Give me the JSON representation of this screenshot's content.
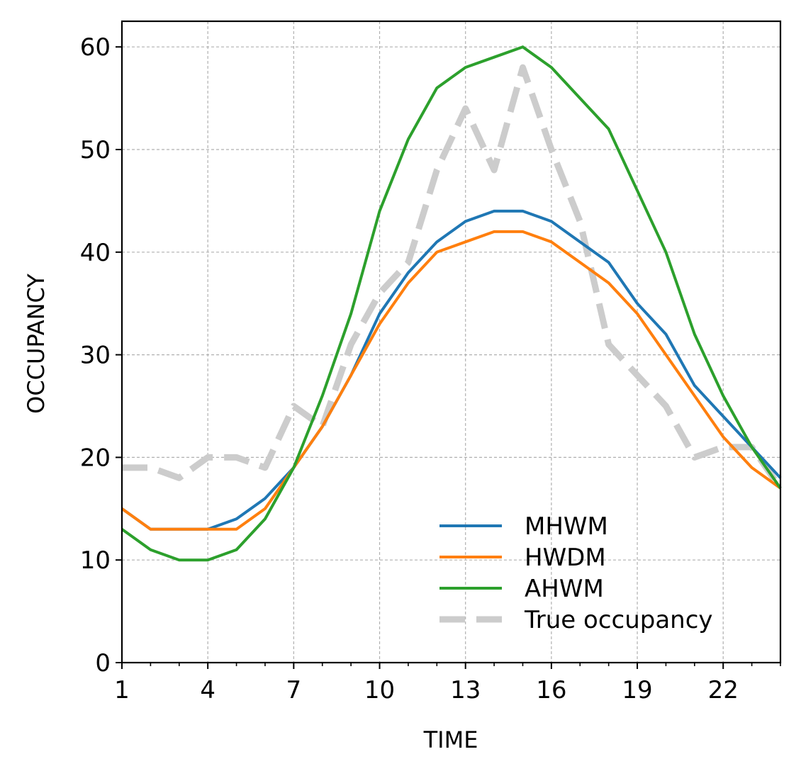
{
  "chart_data": {
    "type": "line",
    "xlabel": "TIME",
    "ylabel": "OCCUPANCY",
    "xlim": [
      1,
      24
    ],
    "ylim": [
      0,
      62.5
    ],
    "x_major_ticks": [
      1,
      4,
      7,
      10,
      13,
      16,
      19,
      22
    ],
    "x_minor_ticks": [
      2,
      3,
      5,
      6,
      8,
      9,
      11,
      12,
      14,
      15,
      17,
      18,
      20,
      21,
      23,
      24
    ],
    "y_ticks": [
      0,
      10,
      20,
      30,
      40,
      50,
      60
    ],
    "x_tick_labels": [
      "1",
      "4",
      "7",
      "10",
      "13",
      "16",
      "19",
      "22"
    ],
    "y_tick_labels": [
      "0",
      "10",
      "20",
      "30",
      "40",
      "50",
      "60"
    ],
    "grid": true,
    "legend_position": "lower-right",
    "x": [
      1,
      2,
      3,
      4,
      5,
      6,
      7,
      8,
      9,
      10,
      11,
      12,
      13,
      14,
      15,
      16,
      17,
      18,
      19,
      20,
      21,
      22,
      23,
      24
    ],
    "series": [
      {
        "name": "MHWM",
        "color": "#1f77b4",
        "style": "solid",
        "values": [
          15,
          13,
          13,
          13,
          14,
          16,
          19,
          23,
          28,
          34,
          38,
          41,
          43,
          44,
          44,
          43,
          41,
          39,
          35,
          32,
          27,
          24,
          21,
          18
        ]
      },
      {
        "name": "HWDM",
        "color": "#ff7f0e",
        "style": "solid",
        "values": [
          15,
          13,
          13,
          13,
          13,
          15,
          19,
          23,
          28,
          33,
          37,
          40,
          41,
          42,
          42,
          41,
          39,
          37,
          34,
          30,
          26,
          22,
          19,
          17
        ]
      },
      {
        "name": "AHWM",
        "color": "#2ca02c",
        "style": "solid",
        "values": [
          13,
          11,
          10,
          10,
          11,
          14,
          19,
          26,
          34,
          44,
          51,
          56,
          58,
          59,
          60,
          58,
          55,
          52,
          46,
          40,
          32,
          26,
          21,
          17
        ]
      },
      {
        "name": "True occupancy",
        "color": "#cccccc",
        "style": "dashed",
        "values": [
          19,
          19,
          18,
          20,
          20,
          19,
          25,
          23,
          31,
          36,
          39,
          48,
          54,
          48,
          58,
          50,
          43,
          31,
          28,
          25,
          20,
          21,
          21,
          17
        ]
      }
    ]
  }
}
